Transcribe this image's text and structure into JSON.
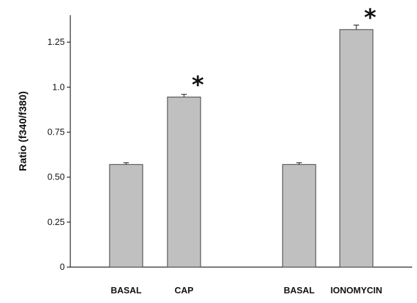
{
  "chart_data": {
    "type": "bar",
    "title": "",
    "xlabel": "",
    "ylabel": "Ratio (f340/f380)",
    "ylim": [
      0,
      1.4
    ],
    "yticks": [
      "0",
      "0.25",
      "0.50",
      "0.75",
      "1.0",
      "1.25"
    ],
    "ytick_values": [
      0,
      0.25,
      0.5,
      0.75,
      1.0,
      1.25
    ],
    "categories": [
      "BASAL",
      "CAP",
      "BASAL",
      "IONOMYCIN"
    ],
    "values": [
      0.57,
      0.945,
      0.57,
      1.32
    ],
    "errors": [
      0.01,
      0.015,
      0.01,
      0.025
    ],
    "significance": [
      "",
      "*",
      "",
      "*"
    ],
    "groups": [
      [
        0,
        1
      ],
      [
        2,
        3
      ]
    ],
    "bar_color": "#c0c0c0",
    "bar_edge_color": "#555555",
    "grid": false,
    "legend": "none"
  }
}
